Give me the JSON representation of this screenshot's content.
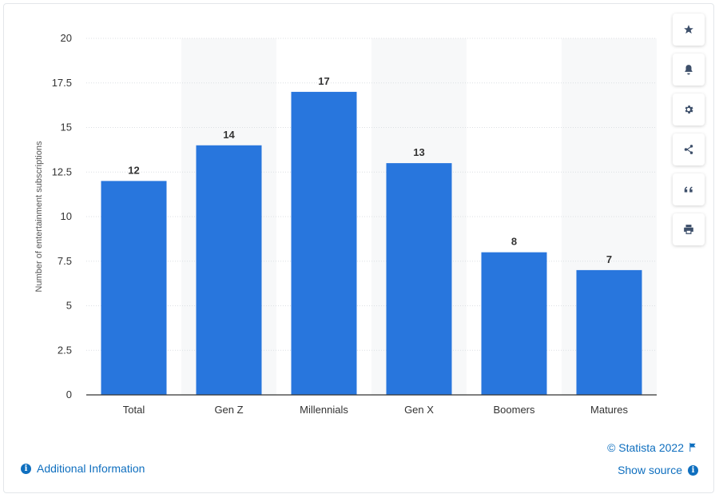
{
  "chart_data": {
    "type": "bar",
    "categories": [
      "Total",
      "Gen Z",
      "Millennials",
      "Gen X",
      "Boomers",
      "Matures"
    ],
    "values": [
      12,
      14,
      17,
      13,
      8,
      7
    ],
    "ylabel": "Number of entertainment subscriptions",
    "xlabel": "",
    "ylim": [
      0,
      20
    ],
    "yticks": [
      "0",
      "2.5",
      "5",
      "7.5",
      "10",
      "12.5",
      "15",
      "17.5",
      "20"
    ],
    "bar_color": "#2876dd",
    "grid": true
  },
  "toolbar": {
    "items": [
      {
        "icon": "star-icon"
      },
      {
        "icon": "bell-icon"
      },
      {
        "icon": "gear-icon"
      },
      {
        "icon": "share-icon"
      },
      {
        "icon": "quote-icon"
      },
      {
        "icon": "print-icon"
      }
    ]
  },
  "footer": {
    "additional_info": "Additional Information",
    "credit": "© Statista 2022",
    "show_source": "Show source"
  },
  "colors": {
    "link": "#0f6fbf",
    "band": "#f7f8f9",
    "grid": "#dcdfe3"
  }
}
